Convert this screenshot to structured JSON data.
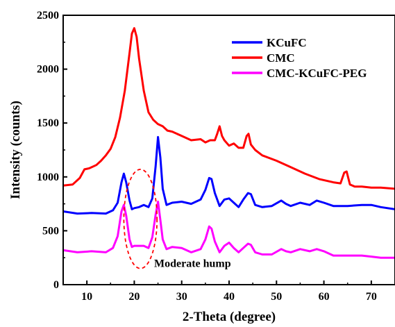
{
  "chart_data": {
    "type": "line",
    "xlabel": "2-Theta (degree)",
    "ylabel": "Intensity (counts)",
    "xlim": [
      5,
      75
    ],
    "ylim": [
      0,
      2500
    ],
    "xticks": [
      10,
      20,
      30,
      40,
      50,
      60,
      70
    ],
    "yticks": [
      0,
      500,
      1000,
      1500,
      2000,
      2500
    ],
    "grid": false,
    "legend_position": "top-right",
    "series": [
      {
        "name": "KCuFC",
        "color": "#0000ff",
        "x": [
          5,
          8,
          11,
          14,
          15.5,
          16.5,
          17.3,
          17.8,
          18.3,
          19,
          19.5,
          20,
          21,
          22,
          23,
          23.8,
          24.5,
          25,
          25.5,
          26,
          26.8,
          28,
          30,
          32,
          34,
          35,
          35.8,
          36.3,
          37,
          38,
          39,
          40,
          41,
          42,
          43,
          44,
          44.6,
          45.5,
          47,
          49,
          51,
          52,
          53,
          55,
          57,
          58.5,
          60,
          62,
          65,
          68,
          70,
          72,
          75
        ],
        "y": [
          680,
          660,
          665,
          660,
          690,
          760,
          950,
          1030,
          950,
          780,
          700,
          710,
          720,
          740,
          720,
          800,
          1100,
          1370,
          1180,
          890,
          740,
          760,
          770,
          750,
          790,
          880,
          990,
          980,
          850,
          730,
          790,
          800,
          760,
          720,
          790,
          850,
          840,
          740,
          720,
          730,
          780,
          750,
          730,
          760,
          740,
          780,
          760,
          730,
          730,
          740,
          740,
          720,
          700
        ]
      },
      {
        "name": "CMC",
        "color": "#ff0000",
        "x": [
          5,
          7,
          8.5,
          9.5,
          10.5,
          12,
          13,
          14,
          15,
          16,
          17,
          18,
          19,
          19.5,
          20,
          20.5,
          21,
          22,
          23,
          24,
          25,
          26,
          27,
          28,
          30,
          32,
          34,
          35,
          36,
          37,
          37.5,
          38,
          38.5,
          39,
          40,
          41,
          42,
          43,
          43.7,
          44.1,
          44.6,
          45.5,
          47,
          50,
          53,
          56,
          59,
          62,
          63.5,
          64.3,
          64.8,
          65.5,
          66.5,
          68,
          70,
          72,
          75
        ],
        "y": [
          920,
          930,
          990,
          1070,
          1080,
          1110,
          1150,
          1200,
          1260,
          1370,
          1550,
          1800,
          2150,
          2330,
          2380,
          2300,
          2100,
          1800,
          1600,
          1530,
          1490,
          1470,
          1430,
          1420,
          1380,
          1340,
          1350,
          1320,
          1340,
          1340,
          1400,
          1470,
          1380,
          1340,
          1290,
          1310,
          1270,
          1270,
          1380,
          1400,
          1300,
          1250,
          1200,
          1150,
          1090,
          1030,
          980,
          950,
          940,
          1040,
          1050,
          930,
          910,
          910,
          900,
          900,
          890
        ]
      },
      {
        "name": "CMC-KCuFC-PEG",
        "color": "#ff00ff",
        "x": [
          5,
          8,
          11,
          14,
          15.5,
          16.5,
          17.3,
          17.8,
          18.3,
          19,
          19.5,
          20,
          21,
          22,
          23,
          23.8,
          24.5,
          25,
          25.5,
          26,
          26.8,
          28,
          30,
          32,
          34,
          35,
          35.8,
          36.3,
          37,
          38,
          39,
          40,
          41,
          42,
          43,
          44,
          44.6,
          45.5,
          47,
          49,
          51,
          52,
          53,
          55,
          57,
          58.5,
          60,
          62,
          65,
          68,
          70,
          72,
          75
        ],
        "y": [
          320,
          300,
          310,
          300,
          340,
          450,
          680,
          740,
          640,
          420,
          350,
          360,
          360,
          360,
          340,
          440,
          650,
          770,
          600,
          420,
          330,
          350,
          340,
          300,
          330,
          420,
          540,
          520,
          400,
          300,
          360,
          390,
          340,
          300,
          340,
          380,
          370,
          300,
          280,
          280,
          330,
          310,
          300,
          330,
          310,
          330,
          310,
          270,
          270,
          270,
          260,
          250,
          250
        ]
      }
    ],
    "annotations": [
      {
        "text": "Moderate hump",
        "shape": "dashed-ellipse",
        "color": "#ff0000",
        "center": [
          21.3,
          610
        ],
        "radius": [
          3.5,
          460
        ]
      }
    ]
  }
}
